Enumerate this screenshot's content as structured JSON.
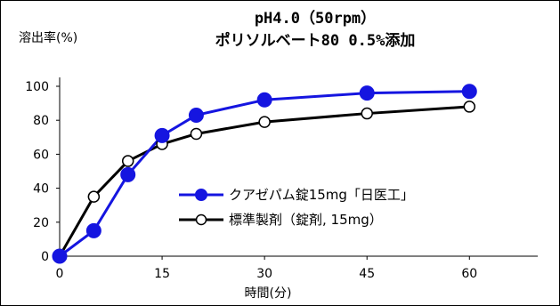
{
  "chart_data": {
    "type": "line",
    "title": "pH4.0（50rpm）",
    "subtitle": "ポリソルベート80 0.5%添加",
    "xlabel": "時間(分)",
    "ylabel": "溶出率(%)",
    "xlim": [
      0,
      70
    ],
    "ylim": [
      0,
      100
    ],
    "xticks": [
      0,
      15,
      30,
      45,
      60
    ],
    "yticks": [
      0,
      20,
      40,
      60,
      80,
      100
    ],
    "grid": false,
    "legend_position": "center-right",
    "series": [
      {
        "name": "クアゼパム錠15mg「日医工」",
        "color": "#1515e0",
        "marker": "filled-circle",
        "x": [
          0,
          5,
          10,
          15,
          20,
          30,
          45,
          60
        ],
        "y": [
          0,
          15,
          48,
          71,
          83,
          92,
          96,
          97
        ]
      },
      {
        "name": "標準製剤（錠剤, 15mg）",
        "color": "#000000",
        "marker": "open-circle",
        "x": [
          0,
          5,
          10,
          15,
          20,
          30,
          45,
          60
        ],
        "y": [
          0,
          35,
          56,
          66,
          72,
          79,
          84,
          88
        ]
      }
    ]
  }
}
